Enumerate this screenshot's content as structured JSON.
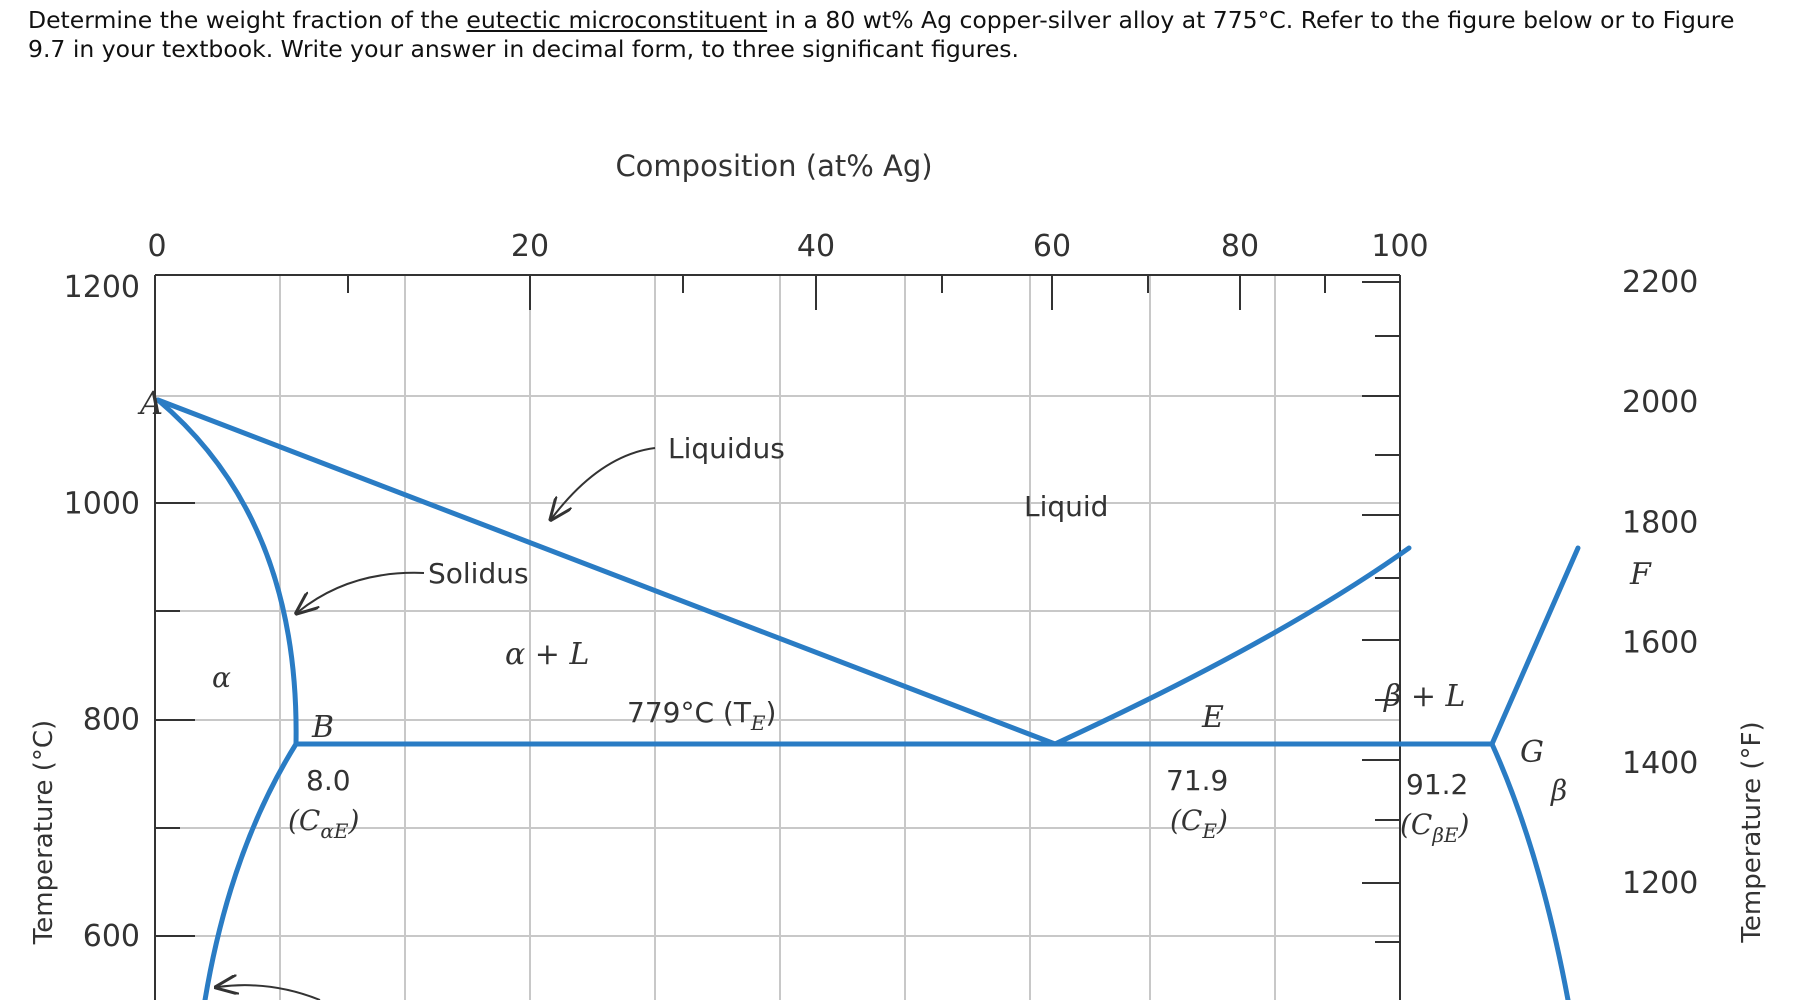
{
  "question": {
    "before": "Determine the weight fraction of the ",
    "link": "eutectic microconstituent",
    "after": " in a 80 wt% Ag copper-silver alloy at 775°C. Refer to the figure below or to Figure 9.7 in your textbook. Write your answer in decimal form, to three significant figures."
  },
  "diagram": {
    "top_axis_label": "Composition (at% Ag)",
    "top_ticks": [
      {
        "label": "0",
        "value": 0
      },
      {
        "label": "20",
        "value": 20
      },
      {
        "label": "40",
        "value": 40
      },
      {
        "label": "60",
        "value": 60
      },
      {
        "label": "80",
        "value": 80
      },
      {
        "label": "100",
        "value": 100
      }
    ],
    "left_axis_label": "Temperature (°C)",
    "left_ticks": [
      {
        "label": "1200",
        "value": 1200
      },
      {
        "label": "1000",
        "value": 1000
      },
      {
        "label": "800",
        "value": 800
      },
      {
        "label": "600",
        "value": 600
      }
    ],
    "right_axis_label": "Temperature (°F)",
    "right_ticks": [
      {
        "label": "2200",
        "value": 2200
      },
      {
        "label": "2000",
        "value": 2000
      },
      {
        "label": "1800",
        "value": 1800
      },
      {
        "label": "1600",
        "value": 1600
      },
      {
        "label": "1400",
        "value": 1400
      },
      {
        "label": "1200",
        "value": 1200
      }
    ],
    "labels": {
      "point_A": "A",
      "point_B": "B",
      "point_E": "E",
      "point_F": "F",
      "point_G": "G",
      "liquidus": "Liquidus",
      "solidus": "Solidus",
      "liquid": "Liquid",
      "alpha": "α",
      "alpha_plus_L": "α + L",
      "beta_plus_L": "β + L",
      "beta": "β",
      "eutectic_temp": "779°C (T",
      "eutectic_temp_sub": "E",
      "eutectic_temp_close": ")",
      "c_alpha_e_value": "8.0",
      "c_alpha_e_open": "(C",
      "c_alpha_e_sub": "αE",
      "c_alpha_e_close": ")",
      "c_e_value": "71.9",
      "c_e_open": "(C",
      "c_e_sub": "E",
      "c_e_close": ")",
      "c_beta_e_value": "91.2",
      "c_beta_e_open": "(C",
      "c_beta_e_sub": "βE",
      "c_beta_e_close": ")"
    },
    "line_color": "#2a7cc4",
    "grid_color": "#c8c8c8"
  }
}
